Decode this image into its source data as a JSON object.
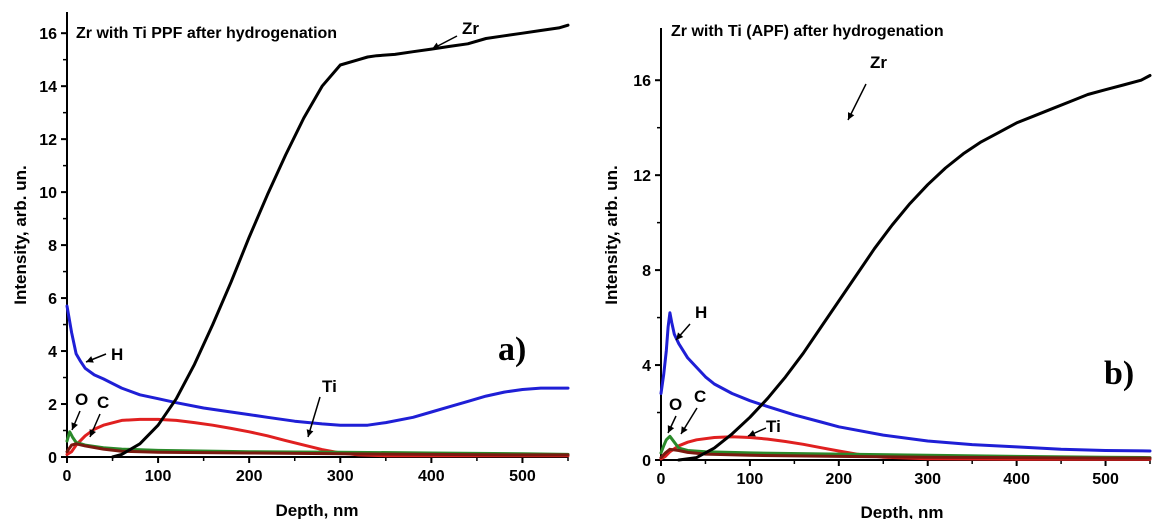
{
  "chart_data": [
    {
      "type": "line",
      "title": "Zr with Ti PPF after hydrogenation",
      "panel_label": "a)",
      "xlabel": "Depth, nm",
      "ylabel": "Intensity, arb. un.",
      "xlim": [
        0,
        550
      ],
      "ylim": [
        0,
        16.8
      ],
      "xticks": [
        0,
        100,
        200,
        300,
        400,
        500
      ],
      "yticks": [
        0,
        2,
        4,
        6,
        8,
        10,
        12,
        14,
        16
      ],
      "grid": false,
      "series": [
        {
          "name": "Zr",
          "color": "#000000",
          "x": [
            50,
            60,
            80,
            100,
            120,
            140,
            160,
            180,
            200,
            220,
            240,
            260,
            280,
            300,
            320,
            330,
            340,
            360,
            380,
            400,
            420,
            440,
            460,
            480,
            500,
            520,
            540,
            550
          ],
          "y": [
            0,
            0.1,
            0.5,
            1.2,
            2.2,
            3.5,
            5.0,
            6.6,
            8.3,
            9.9,
            11.4,
            12.8,
            14.0,
            14.8,
            15.0,
            15.1,
            15.15,
            15.2,
            15.3,
            15.4,
            15.5,
            15.6,
            15.8,
            15.9,
            16.0,
            16.1,
            16.2,
            16.3
          ]
        },
        {
          "name": "H",
          "color": "#1f1fd6",
          "x": [
            0,
            5,
            10,
            15,
            20,
            30,
            40,
            60,
            80,
            100,
            120,
            150,
            180,
            200,
            220,
            250,
            280,
            300,
            330,
            350,
            380,
            400,
            420,
            440,
            460,
            480,
            500,
            520,
            540,
            550
          ],
          "y": [
            5.7,
            4.7,
            3.9,
            3.6,
            3.35,
            3.1,
            2.95,
            2.6,
            2.35,
            2.2,
            2.05,
            1.85,
            1.7,
            1.6,
            1.5,
            1.35,
            1.25,
            1.2,
            1.2,
            1.3,
            1.5,
            1.7,
            1.9,
            2.1,
            2.3,
            2.45,
            2.55,
            2.6,
            2.6,
            2.6
          ]
        },
        {
          "name": "Ti",
          "color": "#e02020",
          "x": [
            0,
            5,
            10,
            20,
            30,
            40,
            60,
            80,
            100,
            120,
            140,
            160,
            180,
            200,
            220,
            240,
            260,
            280,
            300,
            320,
            350,
            400,
            450,
            500,
            550
          ],
          "y": [
            0.1,
            0.2,
            0.45,
            0.8,
            1.05,
            1.2,
            1.38,
            1.42,
            1.42,
            1.38,
            1.3,
            1.2,
            1.08,
            0.95,
            0.8,
            0.62,
            0.45,
            0.28,
            0.15,
            0.08,
            0.05,
            0.05,
            0.05,
            0.05,
            0.05
          ]
        },
        {
          "name": "O",
          "color": "#2a8a2a",
          "x": [
            0,
            3,
            6,
            10,
            20,
            40,
            60,
            100,
            200,
            300,
            400,
            500,
            550
          ],
          "y": [
            0.6,
            0.95,
            0.75,
            0.55,
            0.45,
            0.35,
            0.3,
            0.25,
            0.2,
            0.18,
            0.15,
            0.12,
            0.1
          ]
        },
        {
          "name": "C",
          "color": "#7a1a10",
          "x": [
            0,
            5,
            10,
            20,
            40,
            60,
            100,
            200,
            300,
            400,
            500,
            550
          ],
          "y": [
            0.2,
            0.45,
            0.5,
            0.42,
            0.3,
            0.22,
            0.18,
            0.15,
            0.12,
            0.1,
            0.08,
            0.08
          ]
        }
      ]
    },
    {
      "type": "line",
      "title": "Zr with Ti (APF) after hydrogenation",
      "panel_label": "b)",
      "xlabel": "Depth, nm",
      "ylabel": "Intensity, arb. un.",
      "xlim": [
        0,
        550
      ],
      "ylim": [
        0,
        18.2
      ],
      "xticks": [
        0,
        100,
        200,
        300,
        400,
        500
      ],
      "yticks": [
        0,
        4,
        8,
        12,
        16
      ],
      "grid": false,
      "series": [
        {
          "name": "Zr",
          "color": "#000000",
          "x": [
            20,
            40,
            60,
            80,
            100,
            120,
            140,
            160,
            180,
            200,
            220,
            240,
            260,
            280,
            300,
            320,
            340,
            360,
            380,
            400,
            420,
            440,
            460,
            480,
            500,
            520,
            540,
            550
          ],
          "y": [
            0,
            0.1,
            0.5,
            1.1,
            1.8,
            2.6,
            3.5,
            4.5,
            5.6,
            6.7,
            7.8,
            8.9,
            9.9,
            10.8,
            11.6,
            12.3,
            12.9,
            13.4,
            13.8,
            14.2,
            14.5,
            14.8,
            15.1,
            15.4,
            15.6,
            15.8,
            16.0,
            16.2
          ]
        },
        {
          "name": "H",
          "color": "#1f1fd6",
          "x": [
            0,
            3,
            6,
            8,
            10,
            12,
            15,
            20,
            30,
            40,
            50,
            60,
            80,
            100,
            120,
            150,
            180,
            200,
            250,
            300,
            350,
            400,
            450,
            500,
            550
          ],
          "y": [
            2.8,
            3.6,
            4.6,
            5.6,
            6.2,
            5.8,
            5.3,
            4.9,
            4.3,
            3.9,
            3.5,
            3.2,
            2.8,
            2.5,
            2.25,
            1.9,
            1.6,
            1.4,
            1.05,
            0.8,
            0.65,
            0.55,
            0.45,
            0.4,
            0.38
          ]
        },
        {
          "name": "Ti",
          "color": "#e02020",
          "x": [
            0,
            5,
            10,
            20,
            30,
            40,
            60,
            80,
            100,
            120,
            140,
            160,
            180,
            200,
            220,
            250,
            300,
            400,
            550
          ],
          "y": [
            0.05,
            0.15,
            0.35,
            0.6,
            0.75,
            0.85,
            0.95,
            0.98,
            0.95,
            0.88,
            0.78,
            0.66,
            0.52,
            0.38,
            0.25,
            0.12,
            0.05,
            0.03,
            0.03
          ]
        },
        {
          "name": "O",
          "color": "#2a8a2a",
          "x": [
            0,
            3,
            6,
            10,
            15,
            20,
            30,
            50,
            100,
            200,
            300,
            400,
            500,
            550
          ],
          "y": [
            0.3,
            0.6,
            0.85,
            1.0,
            0.75,
            0.5,
            0.4,
            0.35,
            0.3,
            0.25,
            0.2,
            0.15,
            0.12,
            0.1
          ]
        },
        {
          "name": "C",
          "color": "#7a1a10",
          "x": [
            0,
            5,
            10,
            20,
            30,
            50,
            100,
            200,
            300,
            400,
            500,
            550
          ],
          "y": [
            0.1,
            0.3,
            0.45,
            0.4,
            0.32,
            0.25,
            0.2,
            0.15,
            0.12,
            0.1,
            0.08,
            0.08
          ]
        }
      ]
    }
  ]
}
